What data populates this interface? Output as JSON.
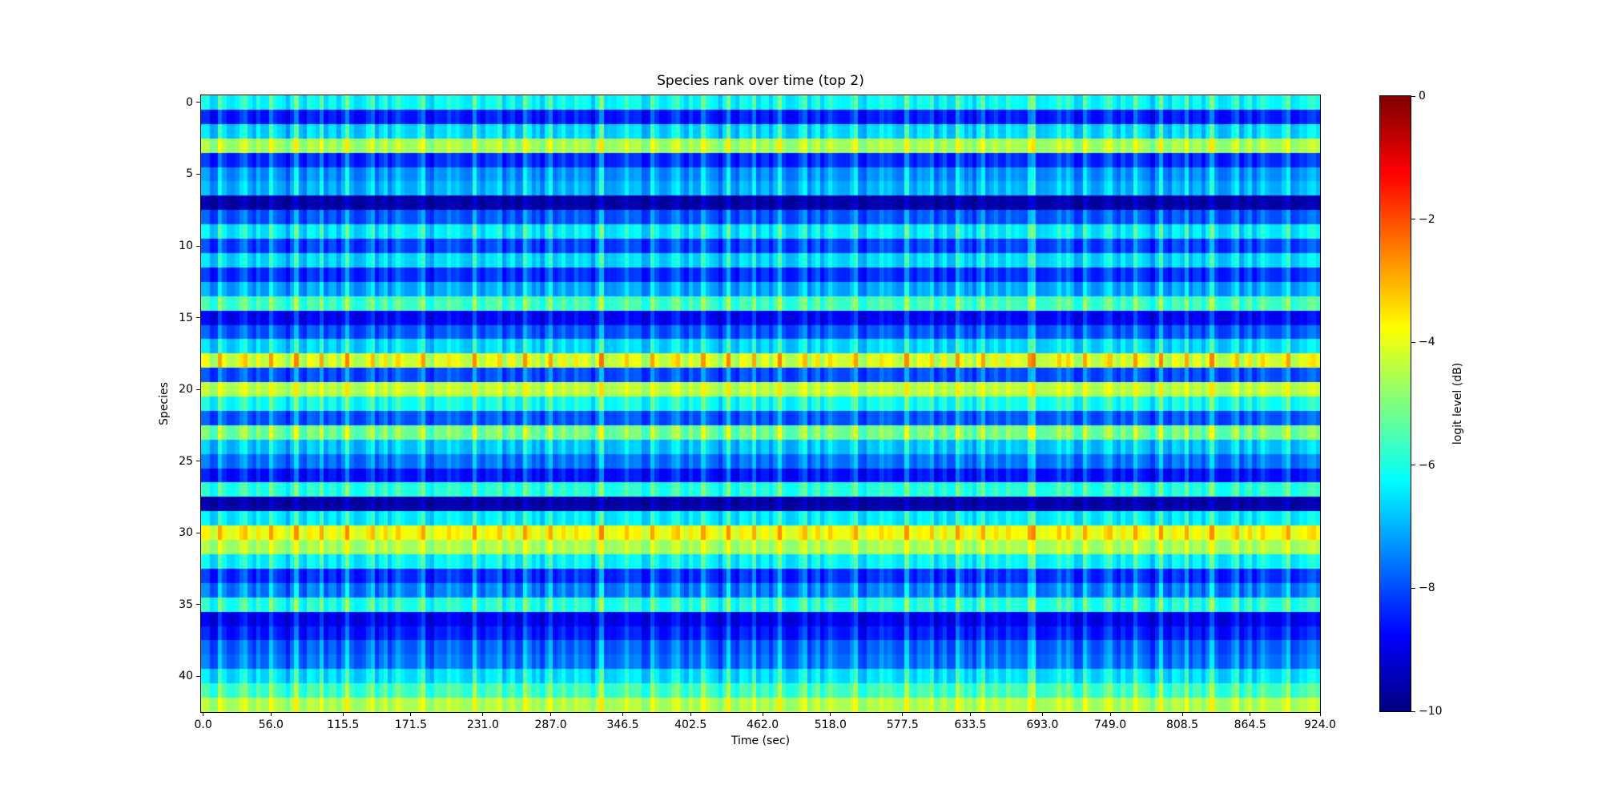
{
  "figure": {
    "background_color": "#ffffff",
    "frame_color": "#000000",
    "text_color": "#000000"
  },
  "chart_data": {
    "type": "heatmap",
    "title": "Species rank over time (top 2)",
    "xlabel": "Time (sec)",
    "ylabel": "Species",
    "colorbar_label": "logit level (dB)",
    "colormap": "jet",
    "vmin": -10,
    "vmax": 0,
    "grid": false,
    "legend": "colorbar-right",
    "n_species": 43,
    "n_columns": 264,
    "frame_sec": 3.5,
    "time_start_sec": 0.0,
    "time_end_sec": 924.0,
    "x_tick_values": [
      0.0,
      56.0,
      115.5,
      171.5,
      231.0,
      287.0,
      346.5,
      402.5,
      462.0,
      518.0,
      577.5,
      633.5,
      693.0,
      749.0,
      808.5,
      864.5,
      924.0
    ],
    "x_tick_labels": [
      "0.0",
      "56.0",
      "115.5",
      "171.5",
      "231.0",
      "287.0",
      "346.5",
      "402.5",
      "462.0",
      "518.0",
      "577.5",
      "633.5",
      "693.0",
      "749.0",
      "808.5",
      "864.5",
      "924.0"
    ],
    "y_tick_values": [
      0,
      5,
      10,
      15,
      20,
      25,
      30,
      35,
      40
    ],
    "y_tick_labels": [
      "0",
      "5",
      "10",
      "15",
      "20",
      "25",
      "30",
      "35",
      "40"
    ],
    "colorbar_tick_values": [
      0,
      -2,
      -4,
      -6,
      -8,
      -10
    ],
    "colorbar_tick_labels": [
      "0",
      "−2",
      "−4",
      "−6",
      "−8",
      "−10"
    ],
    "species_base_db": [
      -6.2,
      -8.5,
      -6.6,
      -4.6,
      -8.3,
      -7.3,
      -7.0,
      -9.6,
      -7.9,
      -6.4,
      -8.1,
      -6.6,
      -8.3,
      -7.1,
      -5.6,
      -8.8,
      -7.9,
      -6.6,
      -4.1,
      -8.0,
      -4.4,
      -6.1,
      -7.9,
      -5.1,
      -6.8,
      -7.6,
      -8.6,
      -5.9,
      -9.6,
      -6.4,
      -3.8,
      -4.6,
      -6.3,
      -8.3,
      -7.5,
      -5.9,
      -8.9,
      -8.5,
      -7.8,
      -7.6,
      -6.5,
      -5.6,
      -4.5
    ],
    "species_amp_db": [
      0.9,
      0.8,
      1.0,
      0.8,
      0.8,
      0.9,
      0.9,
      0.4,
      0.8,
      1.0,
      0.9,
      0.9,
      0.8,
      0.9,
      0.9,
      0.7,
      0.8,
      0.9,
      1.2,
      0.8,
      0.7,
      0.9,
      0.8,
      1.0,
      0.9,
      0.8,
      0.8,
      0.8,
      0.4,
      0.8,
      0.9,
      0.7,
      0.9,
      0.9,
      1.0,
      1.0,
      0.7,
      0.8,
      0.9,
      0.9,
      0.9,
      0.9,
      0.7
    ],
    "column_stripe_pattern_db": [
      -0.15,
      0.1,
      -0.3,
      0.05,
      1.0,
      -0.1
    ],
    "column_block_pattern_db": [
      0.35,
      0.1,
      -0.3,
      -0.5,
      0.05,
      0.3,
      -0.15,
      -0.45,
      0.2,
      0.45,
      -0.2,
      0.0,
      -0.35,
      0.25,
      0.05,
      -0.25,
      0.15
    ],
    "highlight_columns_db": {
      "194": 0.6,
      "195": 0.9,
      "204": 0.5,
      "258": 0.4,
      "261": 0.5
    }
  }
}
